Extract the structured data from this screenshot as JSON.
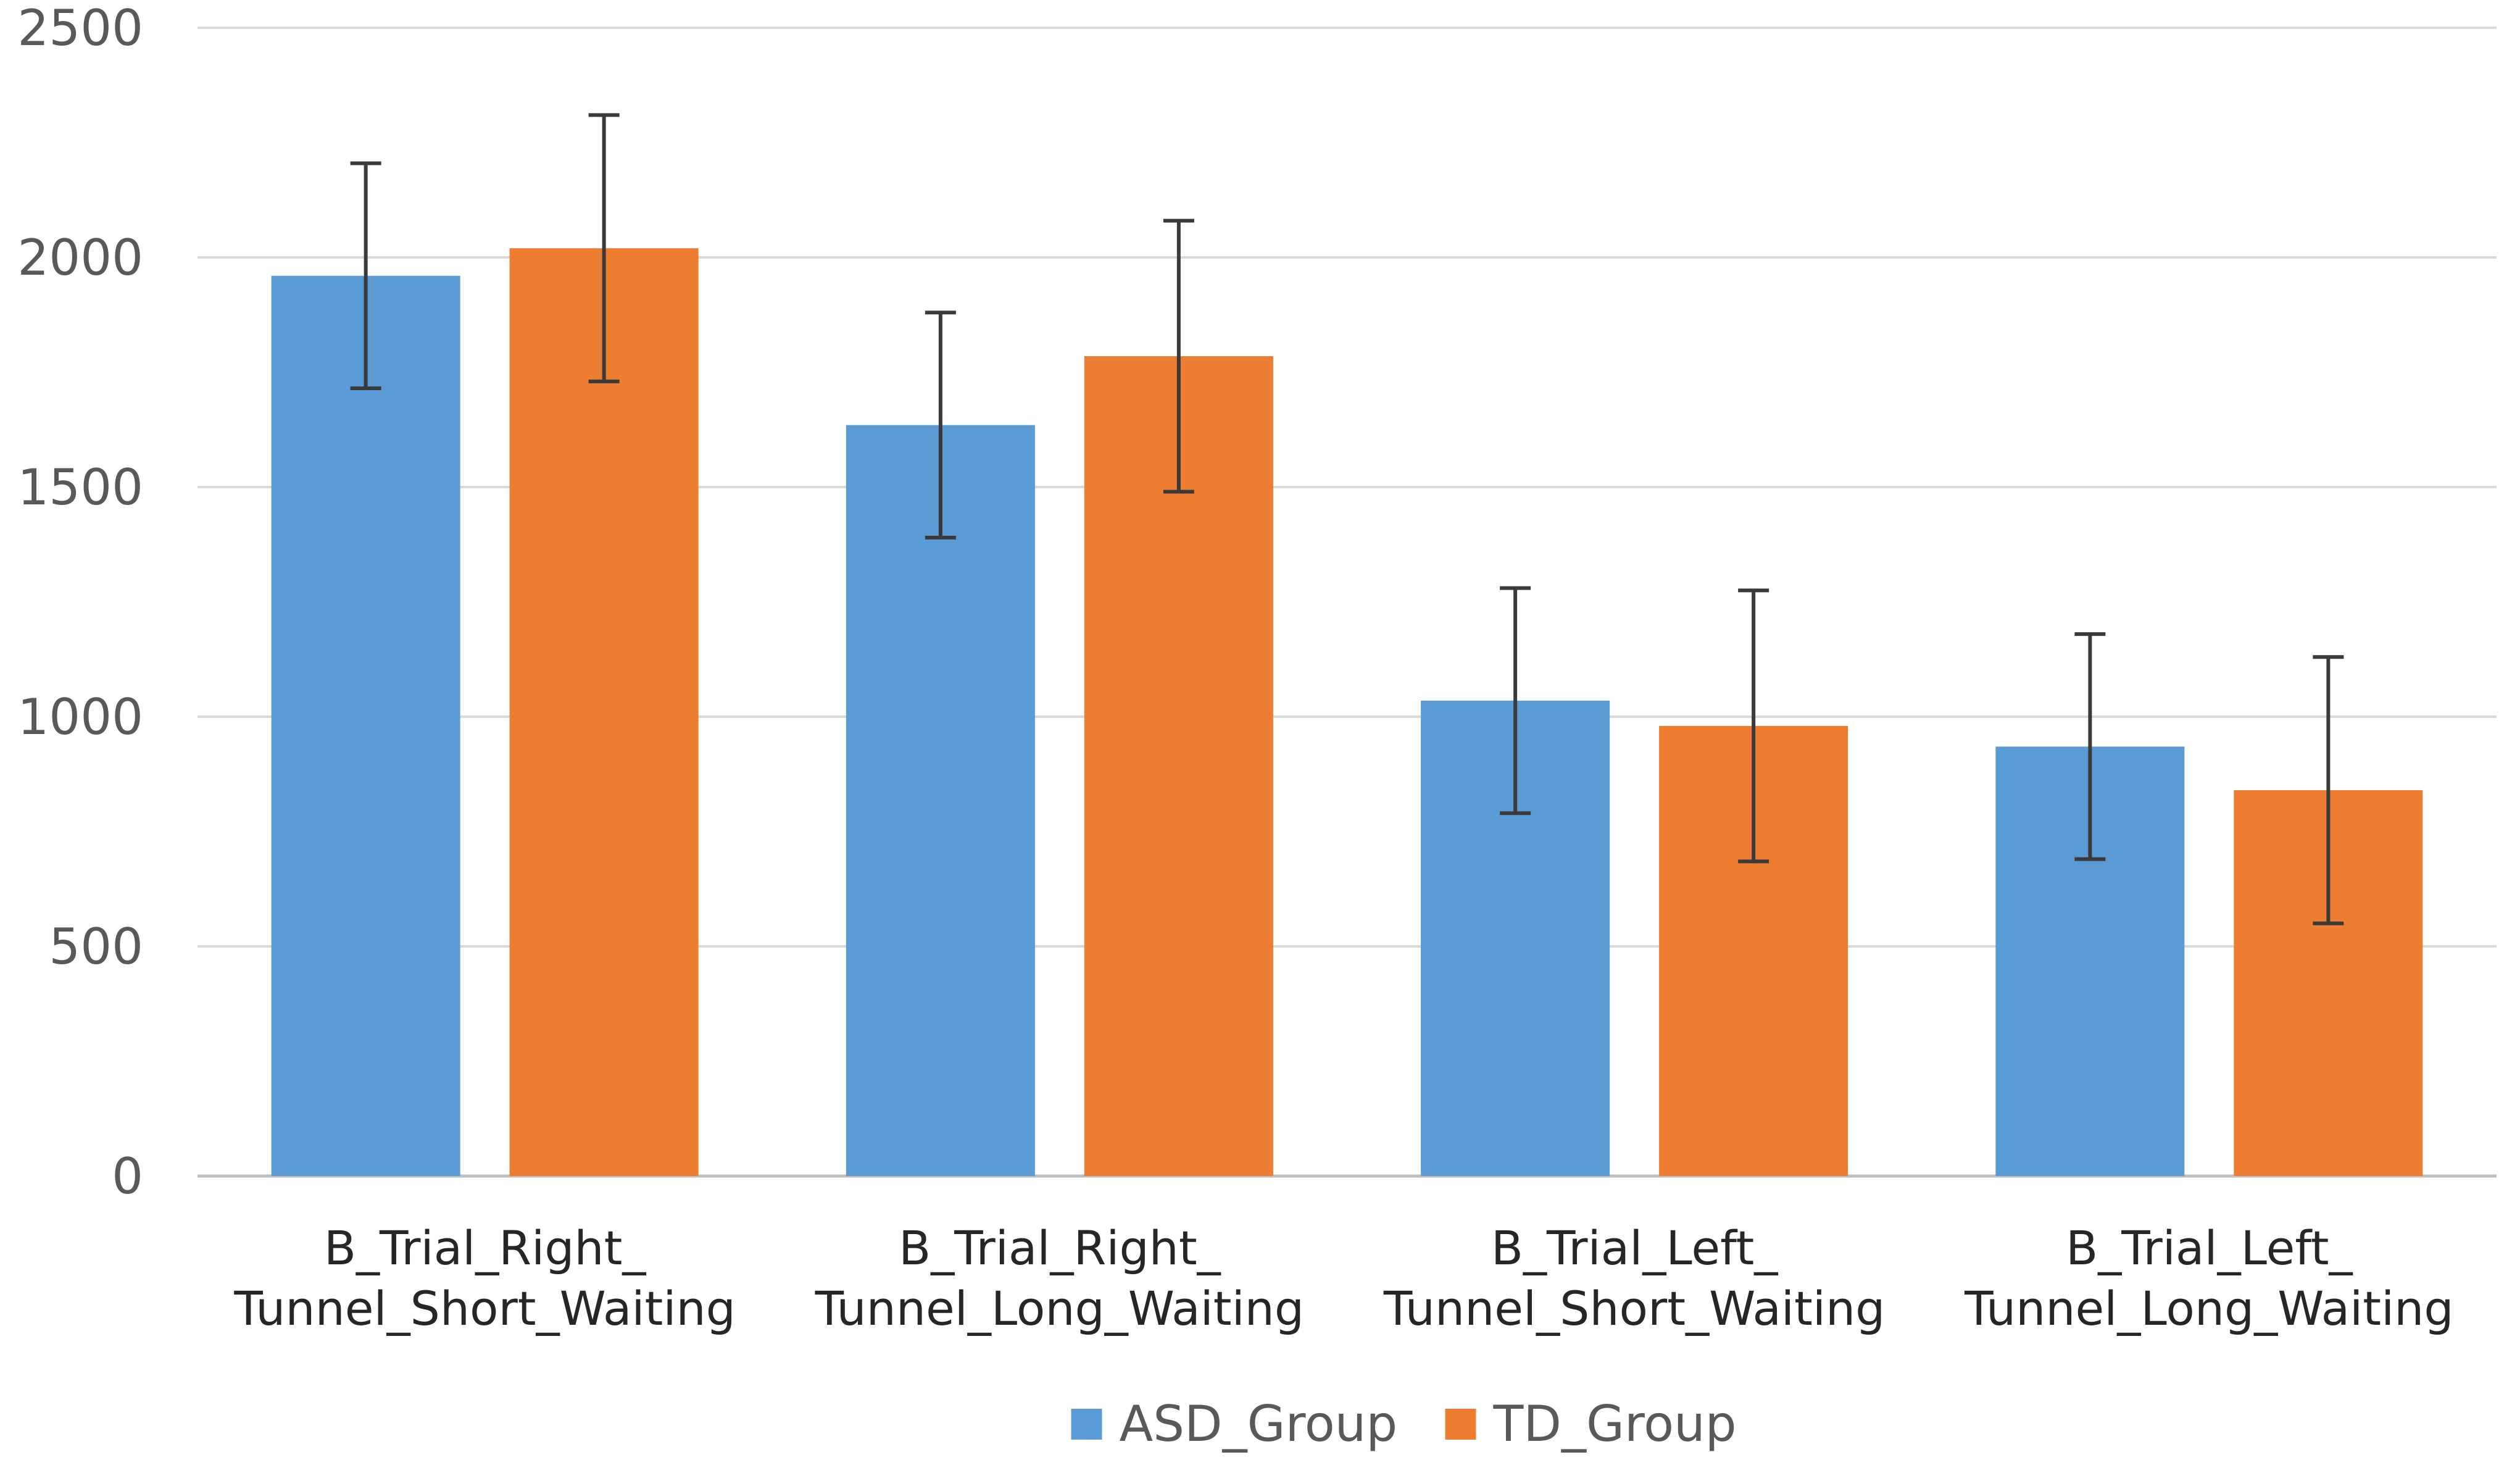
{
  "chart_data": {
    "type": "bar",
    "title": "",
    "xlabel": "",
    "ylabel": "",
    "ylim": [
      0,
      2500
    ],
    "yticks": [
      0,
      500,
      1000,
      1500,
      2000,
      2500
    ],
    "grid": true,
    "legend_position": "bottom",
    "categories": [
      [
        "B_Trial_Right_",
        "Tunnel_Short_Waiting"
      ],
      [
        "B_Trial_Right_",
        "Tunnel_Long_Waiting"
      ],
      [
        "B_Trial_Left_",
        "Tunnel_Short_Waiting"
      ],
      [
        "B_Trial_Left_",
        "Tunnel_Long_Waiting"
      ]
    ],
    "series": [
      {
        "name": "ASD_Group",
        "color": "#5b9bd5",
        "values": [
          1960,
          1635,
          1035,
          935
        ],
        "errors": [
          245,
          245,
          245,
          245
        ]
      },
      {
        "name": "TD_Group",
        "color": "#ed7d31",
        "values": [
          2020,
          1785,
          980,
          840
        ],
        "errors": [
          290,
          295,
          295,
          290
        ]
      }
    ]
  }
}
